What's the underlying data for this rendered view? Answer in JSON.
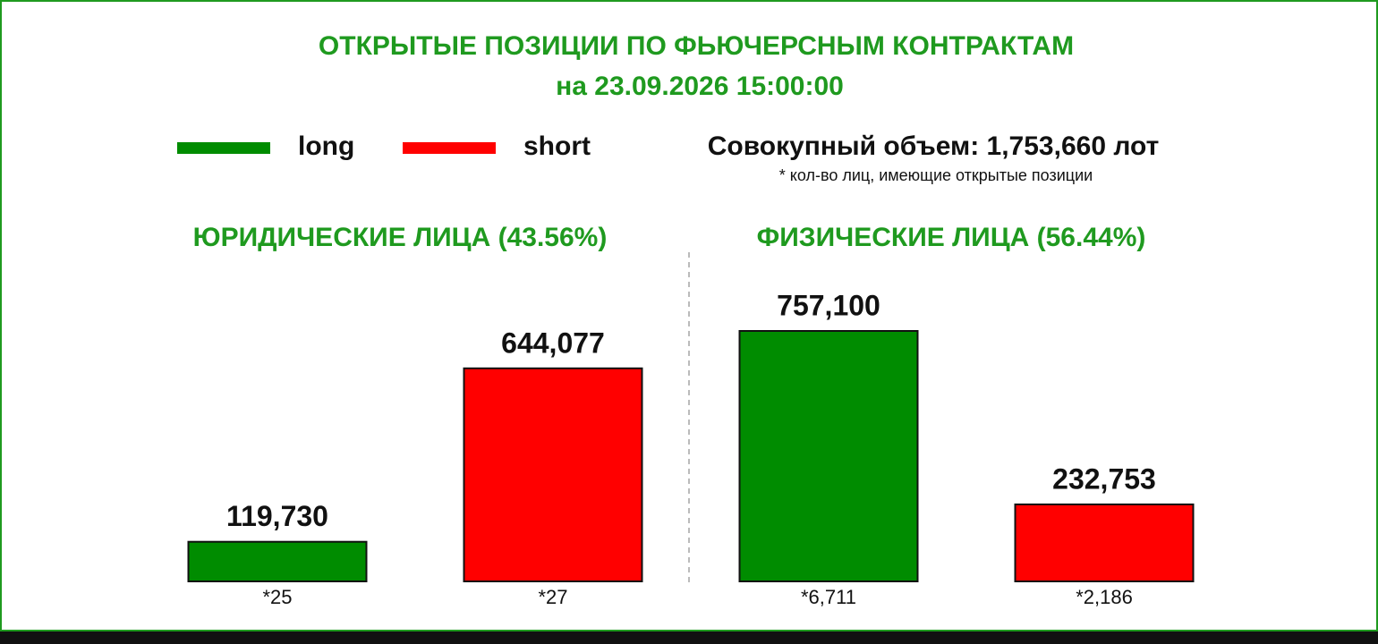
{
  "chart_data": {
    "type": "bar",
    "title": "ОТКРЫТЫЕ ПОЗИЦИИ ПО ФЬЮЧЕРСНЫМ КОНТРАКТАМ",
    "subtitle": "на 23.09.2026 15:00:00",
    "annotations": [
      "Совокупный объем: 1,753,660 лот",
      "* кол-во лиц, имеющие открытые позиции"
    ],
    "categories": [
      "ЮРИДИЧЕСКИЕ ЛИЦА (43.56%)",
      "ФИЗИЧЕСКИЕ ЛИЦА (56.44%)"
    ],
    "series": [
      {
        "name": "long",
        "color": "#008c00",
        "values": [
          119730,
          757100
        ],
        "value_labels": [
          "119,730",
          "757,100"
        ],
        "counts": [
          "*25",
          "*6,711"
        ]
      },
      {
        "name": "short",
        "color": "#ff0000",
        "values": [
          644077,
          232753
        ],
        "value_labels": [
          "644,077",
          "232,753"
        ],
        "counts": [
          "*27",
          "*2,186"
        ]
      }
    ]
  }
}
